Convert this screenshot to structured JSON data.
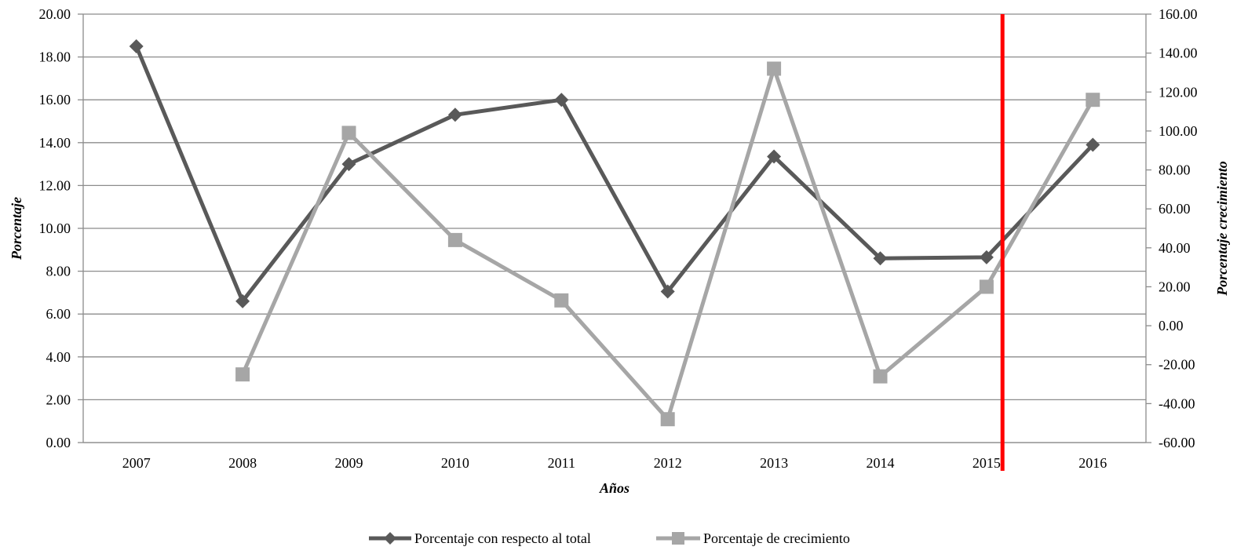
{
  "chart_data": {
    "type": "line",
    "categories": [
      "2007",
      "2008",
      "2009",
      "2010",
      "2011",
      "2012",
      "2013",
      "2014",
      "2015",
      "2016"
    ],
    "xlabel": "Años",
    "ylabel": "Porcentaje",
    "y2label": "Porcentaje crecimiento",
    "ylim": [
      0,
      20
    ],
    "y2lim": [
      -60,
      160
    ],
    "yticks": [
      "0.00",
      "2.00",
      "4.00",
      "6.00",
      "8.00",
      "10.00",
      "12.00",
      "14.00",
      "16.00",
      "18.00",
      "20.00"
    ],
    "y2ticks": [
      "-60.00",
      "-40.00",
      "-20.00",
      "0.00",
      "20.00",
      "40.00",
      "60.00",
      "80.00",
      "100.00",
      "120.00",
      "140.00",
      "160.00"
    ],
    "grid": true,
    "legend_position": "bottom",
    "series": [
      {
        "name": "Porcentaje con respecto al total",
        "axis": "left",
        "marker": "diamond",
        "color": "#595959",
        "values": [
          18.5,
          6.6,
          13.0,
          15.3,
          16.0,
          7.05,
          13.35,
          8.6,
          8.65,
          13.9
        ]
      },
      {
        "name": "Porcentaje de crecimiento",
        "axis": "right",
        "marker": "square",
        "color": "#A6A6A6",
        "values": [
          null,
          -25,
          99,
          44,
          13,
          -48,
          132,
          -26,
          20,
          116
        ]
      }
    ],
    "reference_line": {
      "category": "2015",
      "offset_fraction": 0.15,
      "color": "#FF0000"
    }
  }
}
